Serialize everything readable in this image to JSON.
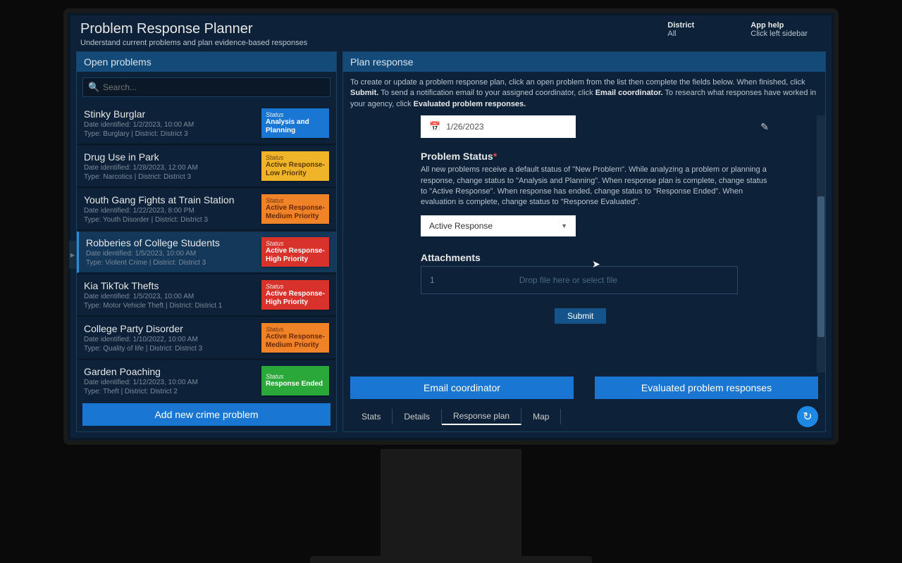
{
  "header": {
    "title": "Problem Response Planner",
    "subtitle": "Understand current problems and plan evidence-based responses",
    "district_label": "District",
    "district_value": "All",
    "help_label": "App help",
    "help_value": "Click left sidebar"
  },
  "left": {
    "panel_title": "Open problems",
    "search_placeholder": "Search...",
    "add_button": "Add new crime problem",
    "status_word": "Status",
    "problems": [
      {
        "name": "Stinky Burglar",
        "date": "Date identified: 1/2/2023, 10:00 AM",
        "type": "Type: Burglary  |  District: District 3",
        "status": "Analysis and Planning",
        "bg": "#1976d2",
        "fg": "#ffffff",
        "selected": false
      },
      {
        "name": "Drug Use in Park",
        "date": "Date identified: 1/28/2023, 12:00 AM",
        "type": "Type: Narcotics  |  District: District 3",
        "status": "Active Response- Low Priority",
        "bg": "#f0b428",
        "fg": "#5a3a00",
        "selected": false
      },
      {
        "name": "Youth Gang Fights at Train Station",
        "date": "Date identified: 1/22/2023, 8:00 PM",
        "type": "Type: Youth Disorder  |  District: District 3",
        "status": "Active Response- Medium Priority",
        "bg": "#f08228",
        "fg": "#6a2a00",
        "selected": false
      },
      {
        "name": "Robberies of College Students",
        "date": "Date identified: 1/5/2023, 10:00 AM",
        "type": "Type: Violent Crime  |  District: District 3",
        "status": "Active Response- High Priority",
        "bg": "#d8322a",
        "fg": "#ffffff",
        "selected": true
      },
      {
        "name": "Kia TikTok Thefts",
        "date": "Date identified: 1/5/2023, 10:00 AM",
        "type": "Type: Motor Vehicle Theft  |  District: District 1",
        "status": "Active Response- High Priority",
        "bg": "#d8322a",
        "fg": "#ffffff",
        "selected": false
      },
      {
        "name": "College Party Disorder",
        "date": "Date identified: 1/10/2022, 10:00 AM",
        "type": "Type: Quality of life  |  District: District 3",
        "status": "Active Response- Medium Priority",
        "bg": "#f08228",
        "fg": "#6a2a00",
        "selected": false
      },
      {
        "name": "Garden Poaching",
        "date": "Date identified: 1/12/2023, 10:00 AM",
        "type": "Type: Theft  |  District: District 2",
        "status": "Response Ended",
        "bg": "#2aa83a",
        "fg": "#ffffff",
        "selected": false
      }
    ]
  },
  "right": {
    "panel_title": "Plan response",
    "intro_1": "To create or update a problem response plan, click an open problem from the list then complete the fields below. When finished, click ",
    "intro_submit": "Submit.",
    "intro_2": " To send a notification email to your assigned coordinator, click ",
    "intro_email": "Email coordinator.",
    "intro_3": " To research what responses have worked in your agency, click ",
    "intro_eval": "Evaluated problem responses.",
    "date_value": "1/26/2023",
    "status_label": "Problem Status",
    "status_help": "All new problems receive a default status of \"New Problem\". While analyzing a problem or planning a response, change status to \"Analysis and Planning\". When response plan is complete, change status to \"Active Response\". When response has ended, change status to \"Response Ended\". When evaluation is complete, change status to \"Response Evaluated\".",
    "status_value": "Active Response",
    "attachments_label": "Attachments",
    "attachments_count": "1",
    "dropzone_text": "Drop file here or select file",
    "submit": "Submit",
    "email_btn": "Email coordinator",
    "eval_btn": "Evaluated problem responses",
    "tabs": [
      "Stats",
      "Details",
      "Response plan",
      "Map"
    ],
    "active_tab": 2
  },
  "colors": {
    "bg": "#0d2238",
    "panel_header": "#144a78",
    "primary": "#1976d2",
    "border": "#164266"
  }
}
